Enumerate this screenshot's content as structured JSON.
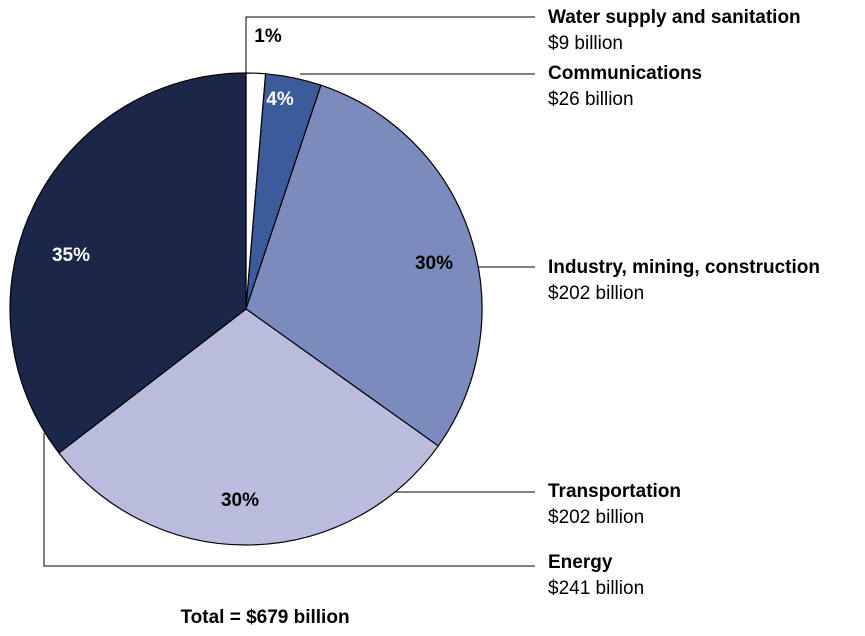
{
  "chart_data": {
    "type": "pie",
    "categories": [
      "Water supply and sanitation",
      "Communications",
      "Industry, mining, construction",
      "Transportation",
      "Energy"
    ],
    "values": [
      9,
      26,
      202,
      202,
      241
    ],
    "value_labels": [
      "$9 billion",
      "$26 billion",
      "$202 billion",
      "$202 billion",
      "$241 billion"
    ],
    "percentage_labels": [
      "1%",
      "4%",
      "30%",
      "30%",
      "35%"
    ],
    "colors": [
      "#ffffff",
      "#3b5b9b",
      "#7b8bbd",
      "#b9bcdc",
      "#1b2748"
    ],
    "total_label": "Total = $679 billion"
  }
}
